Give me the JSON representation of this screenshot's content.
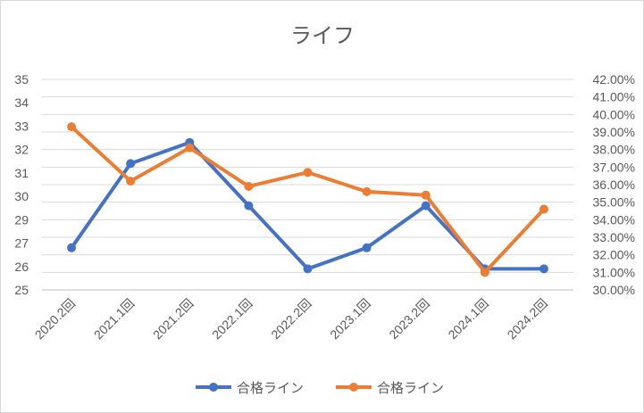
{
  "chart_data": {
    "type": "line",
    "title": "ライフ",
    "categories": [
      "2020.2回",
      "2021.1回",
      "2021.2回",
      "2022.1回",
      "2022.2回",
      "2023.1回",
      "2023.2回",
      "2024.1回",
      "2024.2回"
    ],
    "series": [
      {
        "name": "合格ライン",
        "axis": "left",
        "color": "#4472C4",
        "values": [
          27,
          31,
          32,
          29,
          26,
          27,
          29,
          26,
          26
        ]
      },
      {
        "name": "合格ライン",
        "axis": "right",
        "color": "#ED7D31",
        "values": [
          0.393,
          0.362,
          0.381,
          0.359,
          0.367,
          0.356,
          0.354,
          0.31,
          0.346
        ]
      }
    ],
    "y_left": {
      "min": 25,
      "max": 35,
      "ticks": [
        "35",
        "34",
        "33",
        "32",
        "31",
        "30",
        "29",
        "27",
        "26",
        "25"
      ]
    },
    "y_right": {
      "min": 0.3,
      "max": 0.42,
      "ticks": [
        "42.00%",
        "41.00%",
        "40.00%",
        "39.00%",
        "38.00%",
        "37.00%",
        "36.00%",
        "35.00%",
        "34.00%",
        "33.00%",
        "32.00%",
        "31.00%",
        "30.00%"
      ]
    },
    "grid": true,
    "legend_position": "bottom"
  }
}
